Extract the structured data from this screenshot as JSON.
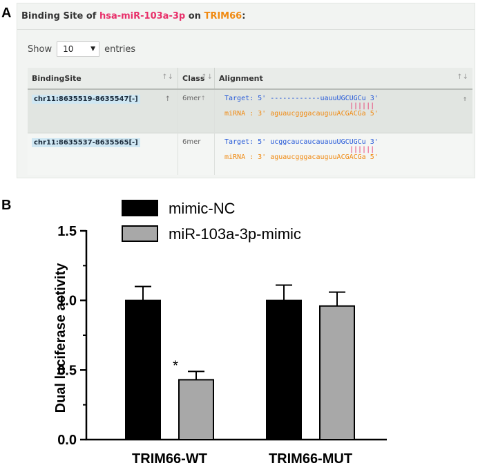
{
  "panel_labels": {
    "a": "A",
    "b": "B"
  },
  "binding_panel": {
    "title_prefix": "Binding Site of ",
    "mirna": "hsa-miR-103a-3p",
    "title_middle": " on ",
    "gene": "TRIM66",
    "title_suffix": ":",
    "show_label": "Show",
    "entries_value": "10",
    "entries_label": "entries",
    "columns": [
      "BindingSite",
      "Class",
      "Alignment"
    ],
    "sort_icon": "sort-arrows-icon",
    "rows": [
      {
        "site": "chr11:8635519-8635547[-]",
        "class": "6mer",
        "target": "Target: 5' ------------uauuUGCUGCu 3'",
        "pairs": "||||||",
        "mirna": "miRNA : 3' aguaucgggacauguuACGACGa 5'"
      },
      {
        "site": "chr11:8635537-8635565[-]",
        "class": "6mer",
        "target": "Target: 5' ucggcaucaucauauuUGCUGCu 3'",
        "pairs": "||||||",
        "mirna": "miRNA : 3' aguaucgggacauguuACGACGa 5'"
      }
    ],
    "colors": {
      "mirna": "#e8306a",
      "gene": "#f08a12",
      "target": "#2458d8"
    }
  },
  "chart_data": {
    "type": "bar",
    "categories": [
      "TRIM66-WT",
      "TRIM66-MUT"
    ],
    "series": [
      {
        "name": "mimic-NC",
        "color": "#000000",
        "values": [
          1.0,
          1.0
        ],
        "errors": [
          0.1,
          0.11
        ]
      },
      {
        "name": "miR-103a-3p-mimic",
        "color": "#a8a8a8",
        "values": [
          0.43,
          0.96
        ],
        "errors": [
          0.06,
          0.1
        ]
      }
    ],
    "ylabel": "Dual luciferase activity",
    "xlabel": "",
    "ylim": [
      0,
      1.5
    ],
    "yticks": [
      "0.0",
      "0.5",
      "1.0",
      "1.5"
    ],
    "annotations": [
      {
        "category": "TRIM66-WT",
        "series": "miR-103a-3p-mimic",
        "text": "*"
      }
    ],
    "legend": "top-center",
    "grid": false
  }
}
